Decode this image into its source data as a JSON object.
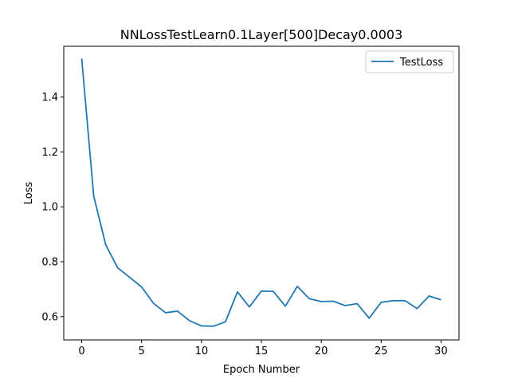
{
  "chart_data": {
    "type": "line",
    "title": "NNLossTestLearn0.1Layer[500]Decay0.0003",
    "xlabel": "Epoch Number",
    "ylabel": "Loss",
    "xlim": [
      -1.5,
      31.5
    ],
    "ylim": [
      0.515,
      1.585
    ],
    "xticks": [
      0,
      5,
      10,
      15,
      20,
      25,
      30
    ],
    "xtick_labels": [
      "0",
      "5",
      "10",
      "15",
      "20",
      "25",
      "30"
    ],
    "yticks": [
      0.6,
      0.8,
      1.0,
      1.2,
      1.4
    ],
    "ytick_labels": [
      "0.6",
      "0.8",
      "1.0",
      "1.2",
      "1.4"
    ],
    "grid": false,
    "legend_position": "top-right",
    "series": [
      {
        "name": "TestLoss",
        "color": "#1f77b4",
        "x": [
          0,
          1,
          2,
          3,
          4,
          5,
          6,
          7,
          8,
          9,
          10,
          11,
          12,
          13,
          14,
          15,
          16,
          17,
          18,
          19,
          20,
          21,
          22,
          23,
          24,
          25,
          26,
          27,
          28,
          29,
          30
        ],
        "y": [
          1.54,
          1.04,
          0.862,
          0.778,
          0.743,
          0.708,
          0.648,
          0.614,
          0.62,
          0.585,
          0.566,
          0.565,
          0.581,
          0.69,
          0.635,
          0.693,
          0.692,
          0.638,
          0.71,
          0.665,
          0.655,
          0.656,
          0.64,
          0.647,
          0.594,
          0.652,
          0.658,
          0.658,
          0.629,
          0.675,
          0.661
        ]
      }
    ]
  }
}
